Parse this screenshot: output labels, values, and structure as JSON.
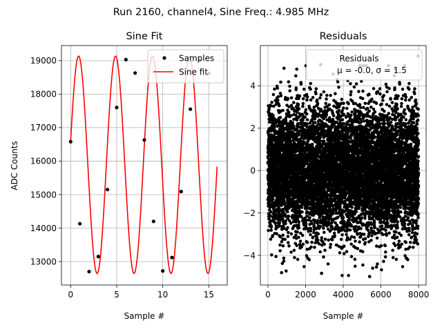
{
  "figure": {
    "suptitle": "Run 2160, channel4, Sine Freq.: 4.985 MHz"
  },
  "chart_data": [
    {
      "type": "scatter+line",
      "title": "Sine Fit",
      "xlabel": "Sample #",
      "ylabel": "ADC Counts",
      "xlim": [
        -1,
        17
      ],
      "ylim": [
        12300,
        19450
      ],
      "xticks": [
        0,
        5,
        10,
        15
      ],
      "yticks": [
        13000,
        14000,
        15000,
        16000,
        17000,
        18000,
        19000
      ],
      "grid": true,
      "legend": {
        "placement": "top-right",
        "entries": [
          "Samples",
          "Sine fit"
        ]
      },
      "samples": {
        "name": "Samples",
        "color": "#000000",
        "x": [
          0,
          1,
          2,
          3,
          4,
          5,
          6,
          7,
          8,
          9,
          10,
          11,
          12,
          13,
          14,
          15
        ],
        "y": [
          16580,
          14130,
          12700,
          13150,
          15150,
          17600,
          19030,
          18630,
          16630,
          14200,
          12720,
          13120,
          15090,
          17550,
          19020,
          18620
        ]
      },
      "fit": {
        "name": "Sine fit",
        "color": "#ff0000",
        "offset": 15890,
        "amplitude": 3245,
        "cycles_per_sample": 0.2492,
        "phase": 0.22,
        "x_range": [
          0,
          15.9
        ]
      }
    },
    {
      "type": "scatter",
      "title": "Residuals",
      "xlabel": "Sample #",
      "ylabel": "",
      "xlim": [
        -400,
        8400
      ],
      "ylim": [
        -5.4,
        5.9
      ],
      "xticks": [
        0,
        2000,
        4000,
        6000,
        8000
      ],
      "yticks": [
        -4,
        -2,
        0,
        2,
        4
      ],
      "grid": true,
      "legend": {
        "placement": "top-right",
        "entries": [
          "Residuals",
          "μ = -0.0, σ = 1.5"
        ]
      },
      "series": {
        "name": "Residuals",
        "color": "#000000",
        "n_points": 8000,
        "mean": 0.0,
        "sigma": 1.5,
        "notable_points": [
          {
            "x": 2800,
            "y": 5.0
          },
          {
            "x": 7980,
            "y": 5.4
          },
          {
            "x": 5400,
            "y": -5.0
          },
          {
            "x": 2850,
            "y": -4.85
          }
        ]
      }
    }
  ]
}
